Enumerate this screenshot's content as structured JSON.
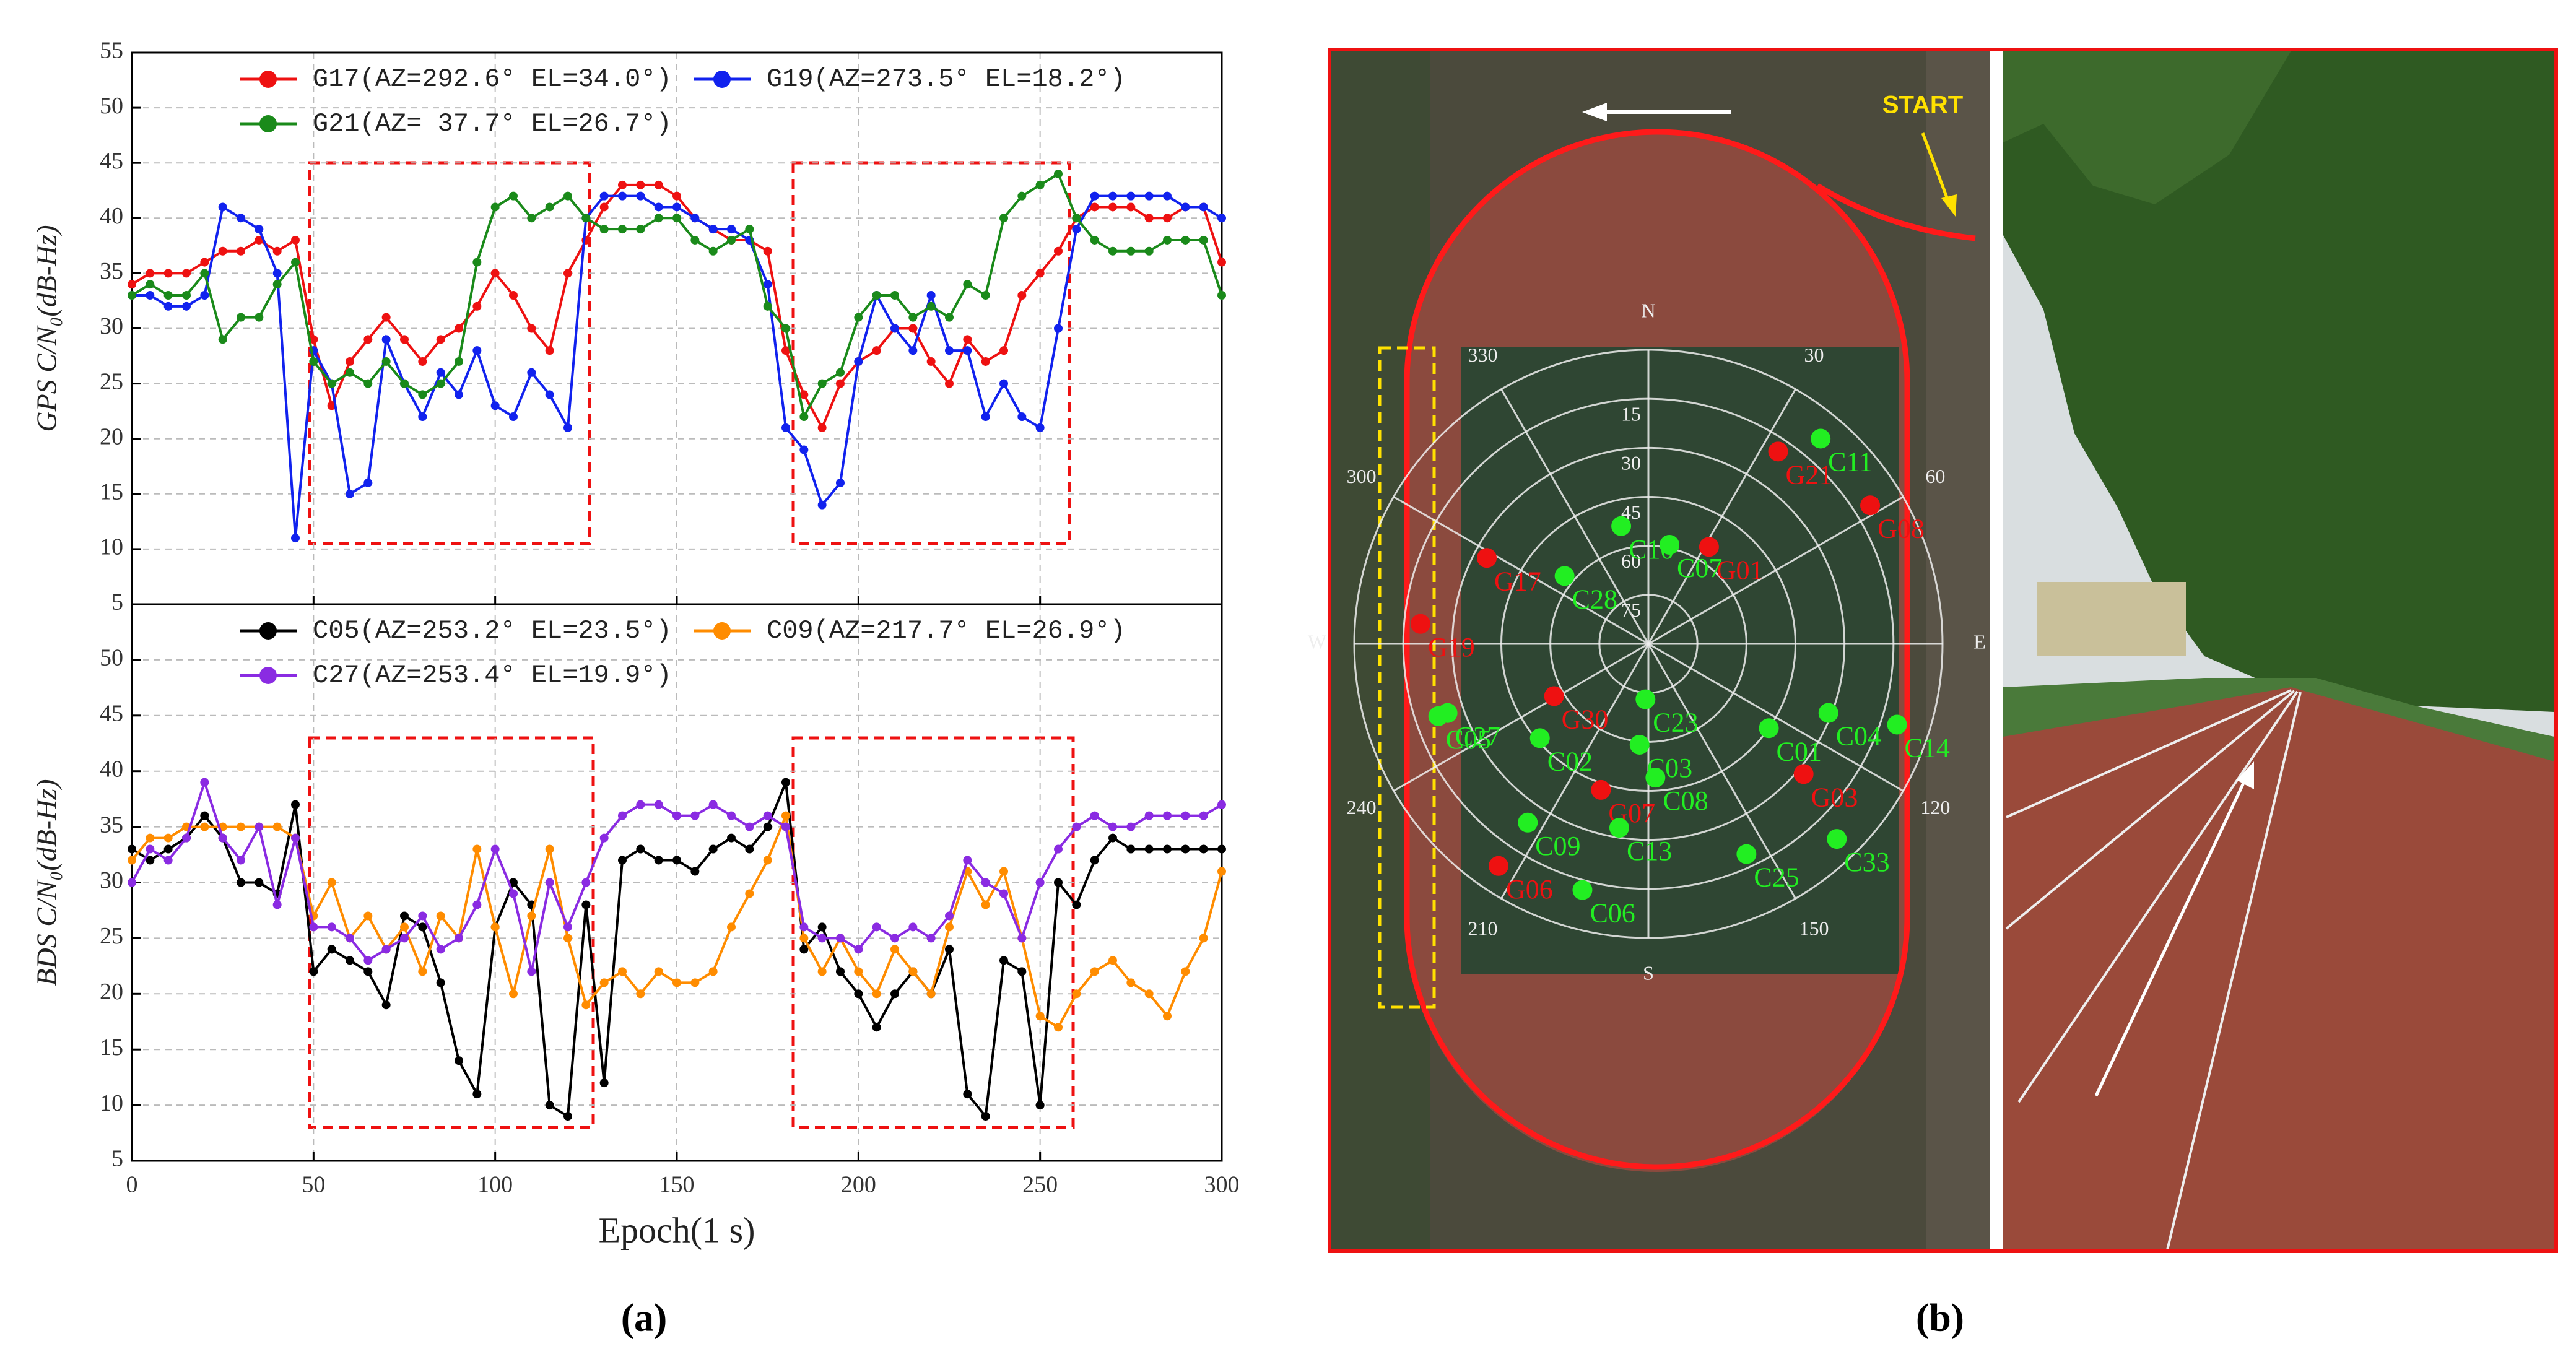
{
  "chart_data": [
    {
      "type": "line",
      "ylabel": "GPS C/N₀(dB-Hz)",
      "xlim": [
        0,
        300
      ],
      "xticks": [
        0,
        50,
        100,
        150,
        200,
        250,
        300
      ],
      "show_xtick_labels": false,
      "ylim": [
        5,
        55
      ],
      "yticks": [
        5,
        10,
        15,
        20,
        25,
        30,
        35,
        40,
        45,
        50,
        55
      ],
      "grid": true,
      "legend": "upper left",
      "x": [
        0,
        5,
        10,
        15,
        20,
        25,
        30,
        35,
        40,
        45,
        50,
        55,
        60,
        65,
        70,
        75,
        80,
        85,
        90,
        95,
        100,
        105,
        110,
        115,
        120,
        125,
        130,
        135,
        140,
        145,
        150,
        155,
        160,
        165,
        170,
        175,
        180,
        185,
        190,
        195,
        200,
        205,
        210,
        215,
        220,
        225,
        230,
        235,
        240,
        245,
        250,
        255,
        260,
        265,
        270,
        275,
        280,
        285,
        290,
        295,
        300
      ],
      "series": [
        {
          "name": "G17(AZ=292.6° EL=34.0°)",
          "color": "#ee1111",
          "values": [
            34,
            35,
            35,
            35,
            36,
            37,
            37,
            38,
            37,
            38,
            29,
            23,
            27,
            29,
            31,
            29,
            27,
            29,
            30,
            32,
            35,
            33,
            30,
            28,
            35,
            38,
            41,
            43,
            43,
            43,
            42,
            40,
            39,
            38,
            38,
            37,
            28,
            24,
            21,
            25,
            27,
            28,
            30,
            30,
            27,
            25,
            29,
            27,
            28,
            33,
            35,
            37,
            40,
            41,
            41,
            41,
            40,
            40,
            41,
            41,
            36
          ]
        },
        {
          "name": "G19(AZ=273.5° EL=18.2°)",
          "color": "#1122ee",
          "values": [
            33,
            33,
            32,
            32,
            33,
            41,
            40,
            39,
            35,
            11,
            28,
            25,
            15,
            16,
            29,
            25,
            22,
            26,
            24,
            28,
            23,
            22,
            26,
            24,
            21,
            40,
            42,
            42,
            42,
            41,
            41,
            40,
            39,
            39,
            38,
            34,
            21,
            19,
            14,
            16,
            27,
            33,
            30,
            28,
            33,
            28,
            28,
            22,
            25,
            22,
            21,
            30,
            39,
            42,
            42,
            42,
            42,
            42,
            41,
            41,
            40
          ]
        },
        {
          "name": "G21(AZ= 37.7° EL=26.7°)",
          "color": "#1a8a1a",
          "values": [
            33,
            34,
            33,
            33,
            35,
            29,
            31,
            31,
            34,
            36,
            27,
            25,
            26,
            25,
            27,
            25,
            24,
            25,
            27,
            36,
            41,
            42,
            40,
            41,
            42,
            40,
            39,
            39,
            39,
            40,
            40,
            38,
            37,
            38,
            39,
            32,
            30,
            22,
            25,
            26,
            31,
            33,
            33,
            31,
            32,
            31,
            34,
            33,
            40,
            42,
            43,
            44,
            40,
            38,
            37,
            37,
            37,
            38,
            38,
            38,
            33
          ]
        }
      ]
    },
    {
      "type": "line",
      "ylabel": "BDS C/N₀(dB-Hz)",
      "xlabel": "Epoch(1 s)",
      "xlim": [
        0,
        300
      ],
      "xticks": [
        0,
        50,
        100,
        150,
        200,
        250,
        300
      ],
      "show_xtick_labels": true,
      "ylim": [
        5,
        55
      ],
      "yticks": [
        5,
        10,
        15,
        20,
        25,
        30,
        35,
        40,
        45,
        50
      ],
      "grid": true,
      "legend": "upper left",
      "x": [
        0,
        5,
        10,
        15,
        20,
        25,
        30,
        35,
        40,
        45,
        50,
        55,
        60,
        65,
        70,
        75,
        80,
        85,
        90,
        95,
        100,
        105,
        110,
        115,
        120,
        125,
        130,
        135,
        140,
        145,
        150,
        155,
        160,
        165,
        170,
        175,
        180,
        185,
        190,
        195,
        200,
        205,
        210,
        215,
        220,
        225,
        230,
        235,
        240,
        245,
        250,
        255,
        260,
        265,
        270,
        275,
        280,
        285,
        290,
        295,
        300
      ],
      "series": [
        {
          "name": "C05(AZ=253.2° EL=23.5°)",
          "color": "#000000",
          "values": [
            33,
            32,
            33,
            34,
            36,
            34,
            30,
            30,
            29,
            37,
            22,
            24,
            23,
            22,
            19,
            27,
            26,
            21,
            14,
            11,
            26,
            30,
            28,
            10,
            9,
            28,
            12,
            32,
            33,
            32,
            32,
            31,
            33,
            34,
            33,
            35,
            39,
            24,
            26,
            22,
            20,
            17,
            20,
            22,
            20,
            24,
            11,
            9,
            23,
            22,
            10,
            30,
            28,
            32,
            34,
            33,
            33,
            33,
            33,
            33,
            33
          ]
        },
        {
          "name": "C09(AZ=217.7° EL=26.9°)",
          "color": "#ff8c00",
          "values": [
            32,
            34,
            34,
            35,
            35,
            35,
            35,
            35,
            35,
            34,
            27,
            30,
            25,
            27,
            24,
            26,
            22,
            27,
            25,
            33,
            26,
            20,
            27,
            33,
            25,
            19,
            21,
            22,
            20,
            22,
            21,
            21,
            22,
            26,
            29,
            32,
            36,
            25,
            22,
            25,
            22,
            20,
            24,
            22,
            20,
            26,
            31,
            28,
            31,
            25,
            18,
            17,
            20,
            22,
            23,
            21,
            20,
            18,
            22,
            25,
            31
          ]
        },
        {
          "name": "C27(AZ=253.4° EL=19.9°)",
          "color": "#8a2be2",
          "values": [
            30,
            33,
            32,
            34,
            39,
            34,
            32,
            35,
            28,
            34,
            26,
            26,
            25,
            23,
            24,
            25,
            27,
            24,
            25,
            28,
            33,
            29,
            22,
            30,
            26,
            30,
            34,
            36,
            37,
            37,
            36,
            36,
            37,
            36,
            35,
            36,
            35,
            26,
            25,
            25,
            24,
            26,
            25,
            26,
            25,
            27,
            32,
            30,
            29,
            25,
            30,
            33,
            35,
            36,
            35,
            35,
            36,
            36,
            36,
            36,
            37
          ]
        }
      ]
    },
    {
      "type": "polar",
      "annotation": "START",
      "rlim": [
        90,
        0
      ],
      "azimuth_ticks": [
        {
          "value": 0,
          "label": "N"
        },
        30,
        60,
        {
          "value": 90,
          "label": "E"
        },
        120,
        150,
        {
          "value": 180,
          "label": "S"
        },
        210,
        240,
        {
          "value": 270,
          "label": "W"
        },
        300,
        330
      ],
      "elevation_ticks": [
        15,
        30,
        45,
        60,
        75
      ],
      "satellites": [
        {
          "name": "G21",
          "color": "#ee1111",
          "azimuth": 34,
          "elevation": 19
        },
        {
          "name": "C11",
          "color": "#22ee22",
          "azimuth": 40,
          "elevation": 8
        },
        {
          "name": "G08",
          "color": "#ee1111",
          "azimuth": 58,
          "elevation": 10
        },
        {
          "name": "G01",
          "color": "#ee1111",
          "azimuth": 32,
          "elevation": 55
        },
        {
          "name": "C10",
          "color": "#22ee22",
          "azimuth": 347,
          "elevation": 53
        },
        {
          "name": "C07",
          "color": "#22ee22",
          "azimuth": 12,
          "elevation": 59
        },
        {
          "name": "G17",
          "color": "#ee1111",
          "azimuth": 298,
          "elevation": 34
        },
        {
          "name": "C28",
          "color": "#22ee22",
          "azimuth": 309,
          "elevation": 57
        },
        {
          "name": "G19",
          "color": "#ee1111",
          "azimuth": 275,
          "elevation": 20
        },
        {
          "name": "C27",
          "color": "#22ee22",
          "azimuth": 251,
          "elevation": 25
        },
        {
          "name": "C05",
          "color": "#22ee22",
          "azimuth": 251,
          "elevation": 22
        },
        {
          "name": "G30",
          "color": "#ee1111",
          "azimuth": 241,
          "elevation": 57
        },
        {
          "name": "C02",
          "color": "#22ee22",
          "azimuth": 229,
          "elevation": 46
        },
        {
          "name": "C23",
          "color": "#22ee22",
          "azimuth": 183,
          "elevation": 73
        },
        {
          "name": "C03",
          "color": "#22ee22",
          "azimuth": 185,
          "elevation": 59
        },
        {
          "name": "G07",
          "color": "#ee1111",
          "azimuth": 198,
          "elevation": 43
        },
        {
          "name": "C08",
          "color": "#22ee22",
          "azimuth": 177,
          "elevation": 49
        },
        {
          "name": "C13",
          "color": "#22ee22",
          "azimuth": 189,
          "elevation": 33
        },
        {
          "name": "C09",
          "color": "#22ee22",
          "azimuth": 214,
          "elevation": 24
        },
        {
          "name": "G06",
          "color": "#ee1111",
          "azimuth": 214,
          "elevation": 8
        },
        {
          "name": "C06",
          "color": "#22ee22",
          "azimuth": 195,
          "elevation": 12
        },
        {
          "name": "C01",
          "color": "#22ee22",
          "azimuth": 125,
          "elevation": 45
        },
        {
          "name": "C04",
          "color": "#22ee22",
          "azimuth": 111,
          "elevation": 31
        },
        {
          "name": "C14",
          "color": "#22ee22",
          "azimuth": 108,
          "elevation": 10
        },
        {
          "name": "G03",
          "color": "#ee1111",
          "azimuth": 130,
          "elevation": 28
        },
        {
          "name": "C25",
          "color": "#22ee22",
          "azimuth": 155,
          "elevation": 19
        },
        {
          "name": "C33",
          "color": "#22ee22",
          "azimuth": 136,
          "elevation": 7
        }
      ]
    }
  ],
  "captions": [
    "(a)",
    "(b)"
  ]
}
